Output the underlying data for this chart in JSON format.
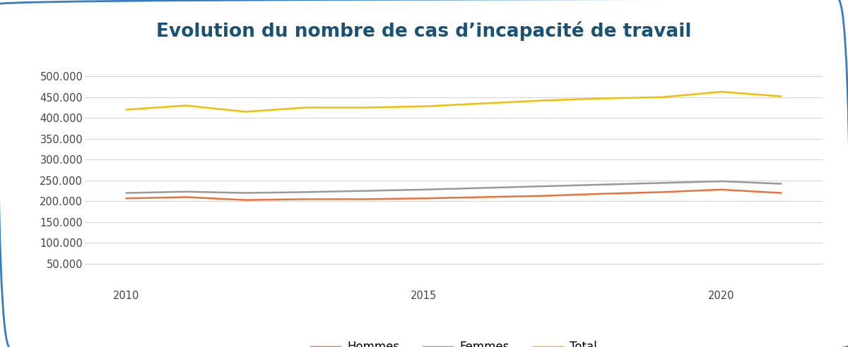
{
  "title": "Evolution du nombre de cas d’incapacité de travail",
  "years": [
    2010,
    2011,
    2012,
    2013,
    2014,
    2015,
    2016,
    2017,
    2018,
    2019,
    2020,
    2021
  ],
  "hommes": [
    207000,
    210000,
    203000,
    205000,
    205000,
    207000,
    210000,
    213000,
    218000,
    222000,
    228000,
    220000
  ],
  "femmes": [
    220000,
    223000,
    220000,
    222000,
    225000,
    228000,
    232000,
    236000,
    240000,
    244000,
    248000,
    242000
  ],
  "total": [
    420000,
    430000,
    415000,
    425000,
    425000,
    428000,
    435000,
    442000,
    447000,
    450000,
    463000,
    452000
  ],
  "hommes_color": "#E8733A",
  "femmes_color": "#999999",
  "total_color": "#F0C000",
  "ylim": [
    0,
    500000
  ],
  "yticks": [
    50000,
    100000,
    150000,
    200000,
    250000,
    300000,
    350000,
    400000,
    450000,
    500000
  ],
  "xticks": [
    2010,
    2015,
    2020
  ],
  "xlim": [
    2009.3,
    2021.7
  ],
  "title_color": "#1A5276",
  "title_fontsize": 19,
  "background_color": "#FFFFFF",
  "border_color": "#3A7BBF",
  "legend_labels": [
    "Hommes",
    "Femmes",
    "Total"
  ],
  "line_width": 1.8,
  "tick_labelsize": 10.5,
  "legend_fontsize": 12
}
